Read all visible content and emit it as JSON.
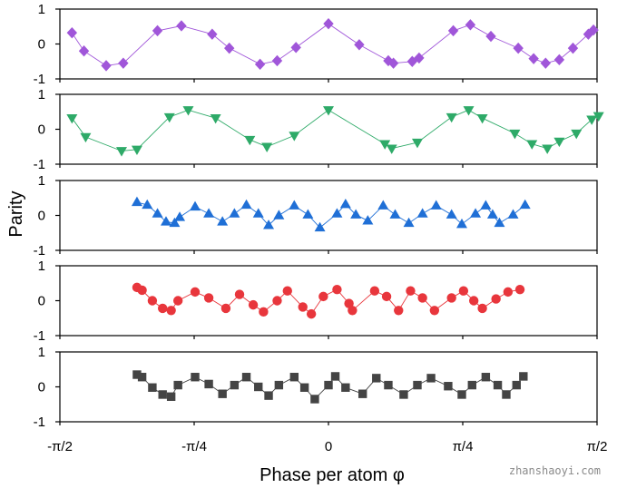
{
  "chart_data": [
    {
      "type": "line",
      "panel": 1,
      "marker": "diamond",
      "color": "#a056d9",
      "ylim": [
        -1,
        1
      ],
      "yticks": [
        -1,
        0,
        1
      ],
      "xlim": [
        -1.5708,
        1.5708
      ],
      "x": [
        -1.5,
        -1.43,
        -1.3,
        -1.2,
        -1.0,
        -0.86,
        -0.68,
        -0.58,
        -0.4,
        -0.3,
        -0.19,
        0.0,
        0.18,
        0.35,
        0.38,
        0.49,
        0.53,
        0.73,
        0.83,
        0.95,
        1.11,
        1.2,
        1.27,
        1.35,
        1.43,
        1.52,
        1.55
      ],
      "y": [
        0.32,
        -0.2,
        -0.62,
        -0.55,
        0.38,
        0.52,
        0.28,
        -0.12,
        -0.58,
        -0.48,
        -0.1,
        0.58,
        -0.02,
        -0.48,
        -0.55,
        -0.5,
        -0.4,
        0.38,
        0.55,
        0.22,
        -0.12,
        -0.42,
        -0.55,
        -0.45,
        -0.12,
        0.28,
        0.4
      ]
    },
    {
      "type": "line",
      "panel": 2,
      "marker": "triangle-down",
      "color": "#2eaa68",
      "ylim": [
        -1,
        1
      ],
      "yticks": [
        -1,
        0,
        1
      ],
      "xlim": [
        -1.5708,
        1.5708
      ],
      "x": [
        -1.5,
        -1.42,
        -1.21,
        -1.12,
        -0.93,
        -0.82,
        -0.66,
        -0.46,
        -0.36,
        -0.2,
        0.0,
        0.33,
        0.37,
        0.52,
        0.72,
        0.82,
        0.9,
        1.09,
        1.19,
        1.28,
        1.35,
        1.45,
        1.54,
        1.58
      ],
      "y": [
        0.32,
        -0.22,
        -0.62,
        -0.58,
        0.35,
        0.55,
        0.32,
        -0.3,
        -0.5,
        -0.18,
        0.55,
        -0.42,
        -0.55,
        -0.38,
        0.35,
        0.55,
        0.32,
        -0.12,
        -0.42,
        -0.55,
        -0.35,
        -0.12,
        0.28,
        0.38
      ]
    },
    {
      "type": "line",
      "panel": 3,
      "marker": "triangle-up",
      "color": "#1f6fd6",
      "ylim": [
        -1,
        1
      ],
      "yticks": [
        -1,
        0,
        1
      ],
      "xlim": [
        -1.5708,
        1.5708
      ],
      "x": [
        -1.12,
        -1.06,
        -1.0,
        -0.95,
        -0.9,
        -0.87,
        -0.78,
        -0.7,
        -0.62,
        -0.55,
        -0.48,
        -0.41,
        -0.35,
        -0.29,
        -0.2,
        -0.12,
        -0.05,
        0.05,
        0.1,
        0.16,
        0.23,
        0.32,
        0.39,
        0.47,
        0.55,
        0.63,
        0.72,
        0.78,
        0.86,
        0.92,
        0.96,
        1.0,
        1.08,
        1.15
      ],
      "y": [
        0.38,
        0.3,
        0.05,
        -0.18,
        -0.22,
        -0.05,
        0.25,
        0.05,
        -0.18,
        0.05,
        0.3,
        0.05,
        -0.28,
        0.0,
        0.28,
        0.02,
        -0.35,
        0.05,
        0.32,
        0.02,
        -0.15,
        0.28,
        0.02,
        -0.22,
        0.05,
        0.28,
        0.02,
        -0.25,
        0.05,
        0.28,
        0.02,
        -0.22,
        0.02,
        0.3
      ]
    },
    {
      "type": "line",
      "panel": 4,
      "marker": "circle",
      "color": "#e8363c",
      "ylim": [
        -1,
        1
      ],
      "yticks": [
        -1,
        0,
        1
      ],
      "xlim": [
        -1.5708,
        1.5708
      ],
      "x": [
        -1.12,
        -1.09,
        -1.03,
        -0.97,
        -0.92,
        -0.88,
        -0.78,
        -0.7,
        -0.6,
        -0.52,
        -0.44,
        -0.38,
        -0.3,
        -0.24,
        -0.15,
        -0.1,
        -0.03,
        0.05,
        0.12,
        0.14,
        0.27,
        0.34,
        0.41,
        0.48,
        0.55,
        0.62,
        0.72,
        0.79,
        0.85,
        0.9,
        0.98,
        1.05,
        1.12
      ],
      "y": [
        0.38,
        0.3,
        0.0,
        -0.22,
        -0.28,
        0.0,
        0.25,
        0.08,
        -0.22,
        0.18,
        -0.12,
        -0.32,
        0.0,
        0.28,
        -0.18,
        -0.38,
        0.12,
        0.32,
        -0.08,
        -0.28,
        0.28,
        0.12,
        -0.28,
        0.28,
        0.08,
        -0.28,
        0.08,
        0.28,
        0.0,
        -0.22,
        0.05,
        0.25,
        0.32
      ]
    },
    {
      "type": "line",
      "panel": 5,
      "marker": "square",
      "color": "#444444",
      "ylim": [
        -1,
        1
      ],
      "yticks": [
        -1,
        0,
        1
      ],
      "xlim": [
        -1.5708,
        1.5708
      ],
      "x": [
        -1.12,
        -1.09,
        -1.03,
        -0.97,
        -0.92,
        -0.88,
        -0.78,
        -0.7,
        -0.62,
        -0.55,
        -0.48,
        -0.41,
        -0.35,
        -0.29,
        -0.2,
        -0.14,
        -0.08,
        0.0,
        0.04,
        0.1,
        0.2,
        0.28,
        0.35,
        0.44,
        0.52,
        0.6,
        0.7,
        0.78,
        0.84,
        0.92,
        0.99,
        1.04,
        1.1,
        1.14
      ],
      "y": [
        0.35,
        0.28,
        -0.02,
        -0.22,
        -0.28,
        0.05,
        0.28,
        0.08,
        -0.2,
        0.05,
        0.28,
        0.0,
        -0.25,
        0.05,
        0.28,
        -0.02,
        -0.35,
        0.05,
        0.3,
        -0.02,
        -0.2,
        0.25,
        0.05,
        -0.22,
        0.05,
        0.25,
        0.02,
        -0.22,
        0.05,
        0.28,
        0.05,
        -0.22,
        0.05,
        0.3
      ]
    }
  ],
  "axes": {
    "ylabel": "Parity",
    "xlabel": "Phase per atom φ",
    "ytick_labels": [
      "-1",
      "0",
      "1"
    ],
    "xtick_labels": [
      "-π/2",
      "-π/4",
      "0",
      "π/4",
      "π/2"
    ]
  },
  "watermark": "zhanshaoyi.com"
}
